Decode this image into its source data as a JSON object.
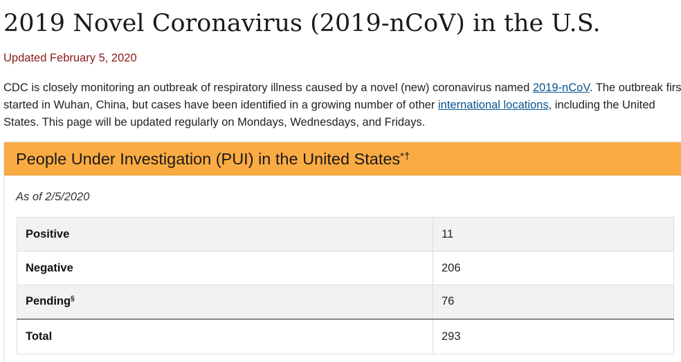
{
  "page": {
    "title": "2019 Novel Coronavirus (2019-nCoV) in the U.S.",
    "updated": "Updated February 5, 2020"
  },
  "intro": {
    "text_1": "CDC is closely monitoring an outbreak of respiratory illness caused by a novel (new) coronavirus named ",
    "link_1": "2019-nCoV",
    "text_2": ". The outbreak first started in Wuhan, China, but cases have been identified in a growing number of other ",
    "link_2": "international locations",
    "text_3": ", including the United States. This page will be updated regularly on Mondays, Wednesdays, and Fridays."
  },
  "card": {
    "title": "People Under Investigation (PUI) in the United States",
    "title_marks": "*†",
    "as_of": "As of 2/5/2020",
    "header_color": "#fbab43"
  },
  "table": {
    "rows": [
      {
        "label": "Positive",
        "mark": "",
        "value": "11"
      },
      {
        "label": "Negative",
        "mark": "",
        "value": "206"
      },
      {
        "label": "Pending",
        "mark": "§",
        "value": "76"
      },
      {
        "label": "Total",
        "mark": "",
        "value": "293"
      }
    ]
  },
  "colors": {
    "updated_text": "#8a1b1b",
    "link": "#075290",
    "row_shade": "#f2f2f2"
  }
}
